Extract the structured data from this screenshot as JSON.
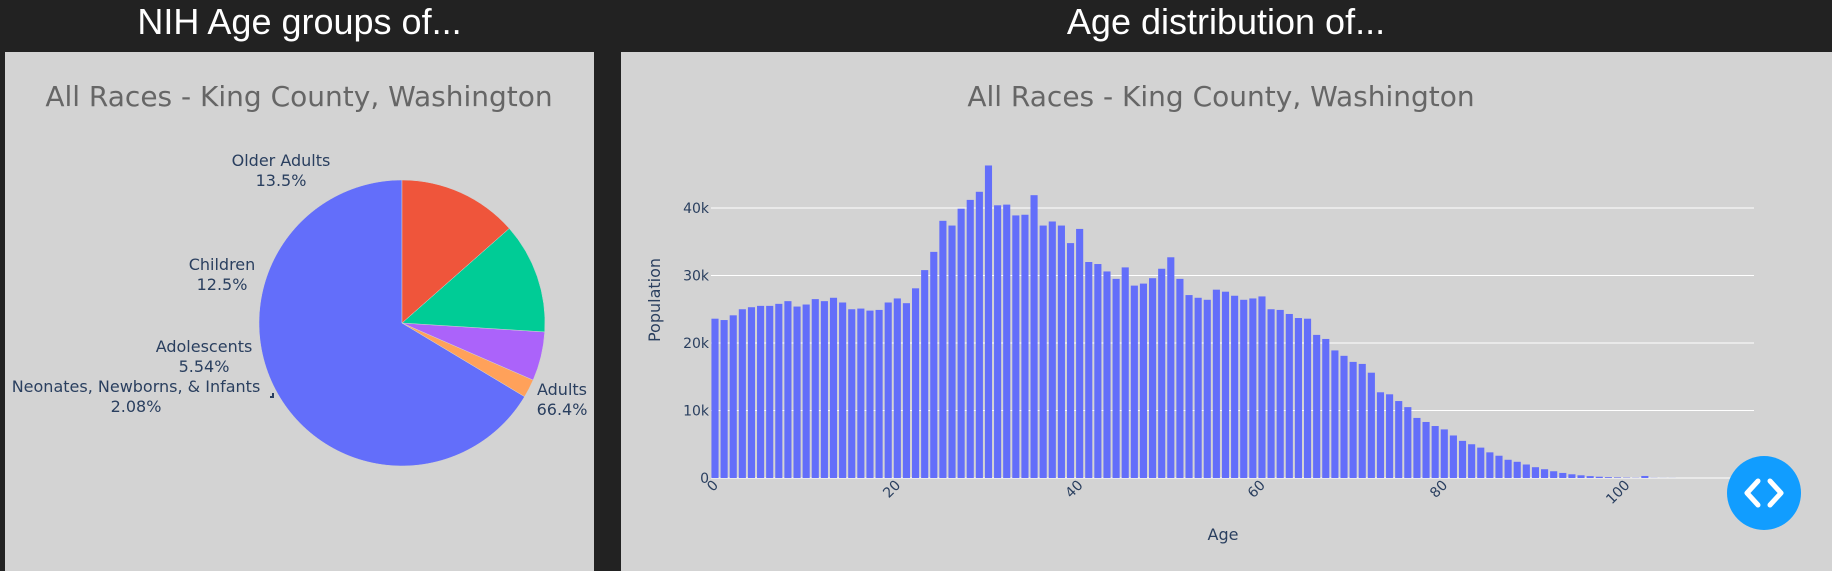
{
  "header": {
    "left_title": "NIH Age groups of...",
    "right_title": "Age distribution of..."
  },
  "colors": {
    "page_bg": "#222222",
    "panel_bg": "#d3d3d3",
    "bar": "#636efa",
    "fab": "#119dff",
    "text": "#2a3f5f"
  },
  "fab": {
    "icon": "code-icon"
  },
  "chart_data": [
    {
      "type": "pie",
      "title": "All Races - King County, Washington",
      "slices": [
        {
          "label": "Adults",
          "percent_label": "66.4%",
          "value": 66.4,
          "color": "#636efa"
        },
        {
          "label": "Neonates, Newborns, & Infants",
          "percent_label": "2.08%",
          "value": 2.08,
          "color": "#ffa15a"
        },
        {
          "label": "Adolescents",
          "percent_label": "5.54%",
          "value": 5.54,
          "color": "#ab63fa"
        },
        {
          "label": "Children",
          "percent_label": "12.5%",
          "value": 12.5,
          "color": "#00cc96"
        },
        {
          "label": "Older Adults",
          "percent_label": "13.5%",
          "value": 13.5,
          "color": "#ef553b"
        }
      ],
      "direction": "counterclockwise",
      "start": "top"
    },
    {
      "type": "bar",
      "title": "All Races - King County, Washington",
      "xlabel": "Age",
      "ylabel": "Population",
      "xlim": [
        0,
        112
      ],
      "ylim": [
        0,
        48000
      ],
      "xticks": [
        0,
        20,
        40,
        60,
        80,
        100
      ],
      "yticks": [
        0,
        10000,
        20000,
        30000,
        40000
      ],
      "ytick_labels": [
        "0",
        "10k",
        "20k",
        "30k",
        "40k"
      ],
      "grid": true,
      "x": [
        0,
        1,
        2,
        3,
        4,
        5,
        6,
        7,
        8,
        9,
        10,
        11,
        12,
        13,
        14,
        15,
        16,
        17,
        18,
        19,
        20,
        21,
        22,
        23,
        24,
        25,
        26,
        27,
        28,
        29,
        30,
        31,
        32,
        33,
        34,
        35,
        36,
        37,
        38,
        39,
        40,
        41,
        42,
        43,
        44,
        45,
        46,
        47,
        48,
        49,
        50,
        51,
        52,
        53,
        54,
        55,
        56,
        57,
        58,
        59,
        60,
        61,
        62,
        63,
        64,
        65,
        66,
        67,
        68,
        69,
        70,
        71,
        72,
        73,
        74,
        75,
        76,
        77,
        78,
        79,
        80,
        81,
        82,
        83,
        84,
        85,
        86,
        87,
        88,
        89,
        90,
        91,
        92,
        93,
        94,
        95,
        96,
        97,
        98,
        99,
        100,
        101,
        102,
        103,
        104,
        105,
        106,
        107,
        108,
        109,
        110
      ],
      "values": [
        23600,
        23400,
        24100,
        25000,
        25300,
        25500,
        25500,
        25800,
        26200,
        25400,
        25700,
        26500,
        26200,
        26700,
        26000,
        25000,
        25100,
        24800,
        24900,
        26000,
        26600,
        25900,
        28100,
        30800,
        33500,
        38100,
        37400,
        39900,
        41200,
        42400,
        46300,
        40400,
        40500,
        38900,
        39000,
        41900,
        37400,
        38000,
        37400,
        34800,
        36900,
        32000,
        31700,
        30600,
        29500,
        31200,
        28500,
        28800,
        29600,
        31000,
        32700,
        29500,
        27100,
        26700,
        26400,
        27900,
        27600,
        27000,
        26400,
        26600,
        26900,
        25000,
        24900,
        24300,
        23700,
        23600,
        21200,
        20600,
        18900,
        18100,
        17200,
        16900,
        15600,
        12700,
        12400,
        11400,
        10500,
        8900,
        8300,
        7700,
        7200,
        6300,
        5500,
        5000,
        4500,
        3800,
        3300,
        2700,
        2400,
        2000,
        1600,
        1300,
        1000,
        750,
        550,
        400,
        280,
        190,
        120,
        80,
        50,
        30,
        300,
        20,
        10,
        10,
        0,
        0,
        0,
        0,
        0
      ]
    }
  ]
}
